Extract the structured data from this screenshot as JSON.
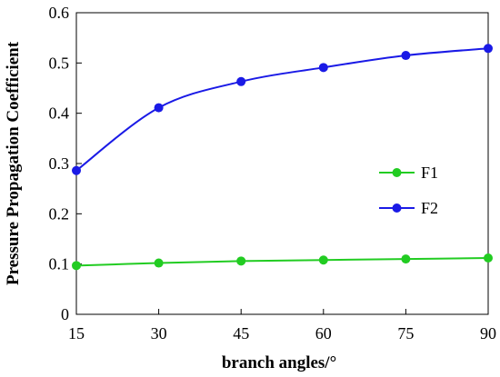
{
  "chart_data": {
    "type": "line",
    "xlabel": "branch angles/°",
    "ylabel": "Pressure Propagation Coefficient",
    "x": [
      15,
      30,
      45,
      60,
      75,
      90
    ],
    "xlim": [
      15,
      90
    ],
    "ylim": [
      0,
      0.6
    ],
    "xticks": [
      "15",
      "30",
      "45",
      "60",
      "75",
      "90"
    ],
    "yticks": [
      "0",
      "0.1",
      "0.2",
      "0.3",
      "0.4",
      "0.5",
      "0.6"
    ],
    "grid": false,
    "legend_position": "right",
    "series": [
      {
        "name": "F1",
        "color": "#22cc22",
        "values": [
          0.097,
          0.102,
          0.106,
          0.108,
          0.11,
          0.112
        ]
      },
      {
        "name": "F2",
        "color": "#1a1ae6",
        "values": [
          0.286,
          0.411,
          0.463,
          0.491,
          0.515,
          0.529
        ]
      }
    ]
  }
}
